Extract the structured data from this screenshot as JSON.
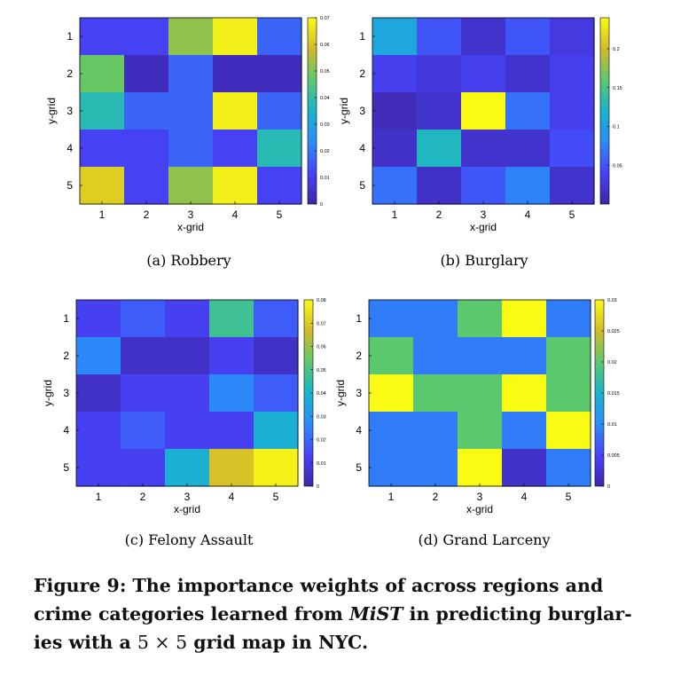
{
  "figure": {
    "caption": {
      "label": "Figure 9:",
      "line1": "The importance weights of across regions and",
      "line2_pre": "crime categories learned from ",
      "line2_em": "MiST",
      "line2_post": " in predicting burglar-",
      "line3_pre": "ies with a ",
      "line3_math": "5 × 5",
      "line3_post": " grid map in NYC."
    }
  },
  "colors": {
    "colormap": [
      "#3e26a8",
      "#4743f8",
      "#2c8cf9",
      "#17b5cc",
      "#5cc86d",
      "#d2ba29",
      "#f9fb14"
    ],
    "text": "#111111",
    "axis": "#000000"
  },
  "chart_data": [
    {
      "type": "heatmap",
      "subcaption": "(a)  Robbery",
      "xlabel": "x-grid",
      "ylabel": "y-grid",
      "x_ticks": [
        "1",
        "2",
        "3",
        "4",
        "5"
      ],
      "y_ticks": [
        "1",
        "2",
        "3",
        "4",
        "5"
      ],
      "colorbar": {
        "min": 0,
        "max": 0.07,
        "ticks": [
          "0",
          "0.01",
          "0.02",
          "0.03",
          "0.04",
          "0.05",
          "0.06",
          "0.07"
        ]
      },
      "values": [
        [
          0.011,
          0.011,
          0.052,
          0.068,
          0.017
        ],
        [
          0.048,
          0.003,
          0.017,
          0.003,
          0.003
        ],
        [
          0.038,
          0.017,
          0.017,
          0.068,
          0.017
        ],
        [
          0.011,
          0.011,
          0.017,
          0.011,
          0.038
        ],
        [
          0.062,
          0.011,
          0.052,
          0.068,
          0.011
        ]
      ]
    },
    {
      "type": "heatmap",
      "subcaption": "(b)  Burglary",
      "xlabel": "x-grid",
      "ylabel": "y-grid",
      "x_ticks": [
        "1",
        "2",
        "3",
        "4",
        "5"
      ],
      "y_ticks": [
        "1",
        "2",
        "3",
        "4",
        "5"
      ],
      "colorbar": {
        "min": 0,
        "max": 0.24,
        "ticks": [
          "0.05",
          "0.1",
          "0.15",
          "0.2"
        ]
      },
      "values": [
        [
          0.105,
          0.05,
          0.018,
          0.05,
          0.028
        ],
        [
          0.035,
          0.025,
          0.035,
          0.018,
          0.035
        ],
        [
          0.008,
          0.018,
          0.24,
          0.065,
          0.035
        ],
        [
          0.015,
          0.125,
          0.018,
          0.018,
          0.045
        ],
        [
          0.065,
          0.015,
          0.05,
          0.075,
          0.018
        ]
      ]
    },
    {
      "type": "heatmap",
      "subcaption": "(c)  Felony Assault",
      "xlabel": "x-grid",
      "ylabel": "y-grid",
      "x_ticks": [
        "1",
        "2",
        "3",
        "4",
        "5"
      ],
      "y_ticks": [
        "1",
        "2",
        "3",
        "4",
        "5"
      ],
      "colorbar": {
        "min": 0,
        "max": 0.08,
        "ticks": [
          "0",
          "0.01",
          "0.02",
          "0.03",
          "0.04",
          "0.05",
          "0.06",
          "0.07",
          "0.08"
        ]
      },
      "values": [
        [
          0.012,
          0.018,
          0.012,
          0.048,
          0.018
        ],
        [
          0.026,
          0.005,
          0.005,
          0.012,
          0.005
        ],
        [
          0.005,
          0.012,
          0.012,
          0.026,
          0.018
        ],
        [
          0.012,
          0.018,
          0.012,
          0.012,
          0.038
        ],
        [
          0.012,
          0.012,
          0.038,
          0.068,
          0.078
        ]
      ]
    },
    {
      "type": "heatmap",
      "subcaption": "(d)  Grand Larceny",
      "xlabel": "x-grid",
      "ylabel": "y-grid",
      "x_ticks": [
        "1",
        "2",
        "3",
        "4",
        "5"
      ],
      "y_ticks": [
        "1",
        "2",
        "3",
        "4",
        "5"
      ],
      "colorbar": {
        "min": 0,
        "max": 0.03,
        "ticks": [
          "0",
          "0.005",
          "0.01",
          "0.015",
          "0.02",
          "0.025",
          "0.03"
        ]
      },
      "values": [
        [
          0.009,
          0.009,
          0.02,
          0.03,
          0.009
        ],
        [
          0.02,
          0.009,
          0.009,
          0.009,
          0.02
        ],
        [
          0.03,
          0.02,
          0.02,
          0.03,
          0.02
        ],
        [
          0.009,
          0.009,
          0.02,
          0.009,
          0.03
        ],
        [
          0.009,
          0.009,
          0.03,
          0.002,
          0.009
        ]
      ]
    }
  ]
}
